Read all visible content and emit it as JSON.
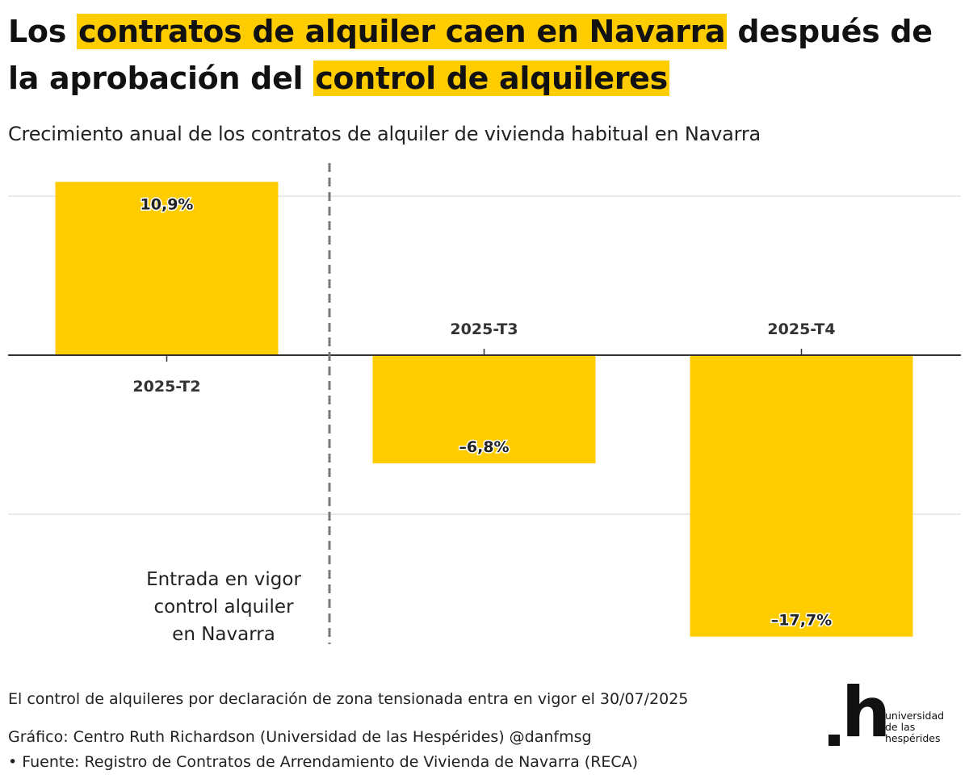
{
  "title_parts": [
    {
      "text": "Los ",
      "hl": false
    },
    {
      "text": "contratos de alquiler caen en Navarra",
      "hl": true
    },
    {
      "text": " después de la aprobación del ",
      "hl": false
    },
    {
      "text": "control de alquileres",
      "hl": true
    }
  ],
  "subtitle": "Crecimiento anual de los contratos de alquiler de vivienda habitual en Navarra",
  "chart_data": {
    "type": "bar",
    "categories": [
      "2025-T2",
      "2025-T3",
      "2025-T4"
    ],
    "values": [
      10.9,
      -6.8,
      -17.7
    ],
    "data_labels": [
      "10,9%",
      "–6,8%",
      "–17,7%"
    ],
    "ylim": [
      -17.7,
      10.9
    ],
    "grid": true,
    "bar_color": "#ffcc00",
    "annotation": {
      "lines": [
        "Entrada en vigor",
        "control alquiler",
        "en Navarra"
      ]
    }
  },
  "footer": {
    "note": "El control de alquileres por declaración de zona tensionada entra en vigor el 30/07/2025",
    "credit": "Gráfico: Centro Ruth Richardson (Universidad de las Hespérides) @danfmsg",
    "source": " • Fuente: Registro de Contratos de Arrendamiento de Vivienda de Navarra (RECA)"
  },
  "logo": {
    "glyph": ".h",
    "text_lines": [
      "universidad",
      "de las",
      "hespérides"
    ]
  }
}
